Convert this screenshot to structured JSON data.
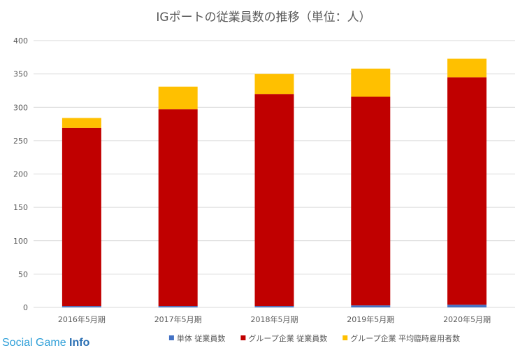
{
  "chart_data": {
    "type": "bar",
    "stacked": true,
    "title": "IGポートの従業員数の推移（単位：人）",
    "xlabel": "",
    "ylabel": "",
    "ylim": [
      0,
      400
    ],
    "yticks": [
      "0",
      "50",
      "100",
      "150",
      "200",
      "250",
      "300",
      "350",
      "400"
    ],
    "categories": [
      "2016年5月期",
      "2017年5月期",
      "2018年5月期",
      "2019年5月期",
      "2020年5月期"
    ],
    "series": [
      {
        "name": "単体 従業員数",
        "color": "#4472c4",
        "values": [
          2,
          2,
          2,
          3,
          4
        ]
      },
      {
        "name": "グループ企業 従業員数",
        "color": "#c00000",
        "values": [
          267,
          295,
          318,
          313,
          341
        ]
      },
      {
        "name": "グループ企業 平均臨時雇用者数",
        "color": "#ffc000",
        "values": [
          15,
          34,
          30,
          42,
          28
        ]
      }
    ],
    "grid": true,
    "legend": "bottom"
  },
  "watermark": {
    "prefix": "Social Game",
    "suffix": "Info"
  }
}
